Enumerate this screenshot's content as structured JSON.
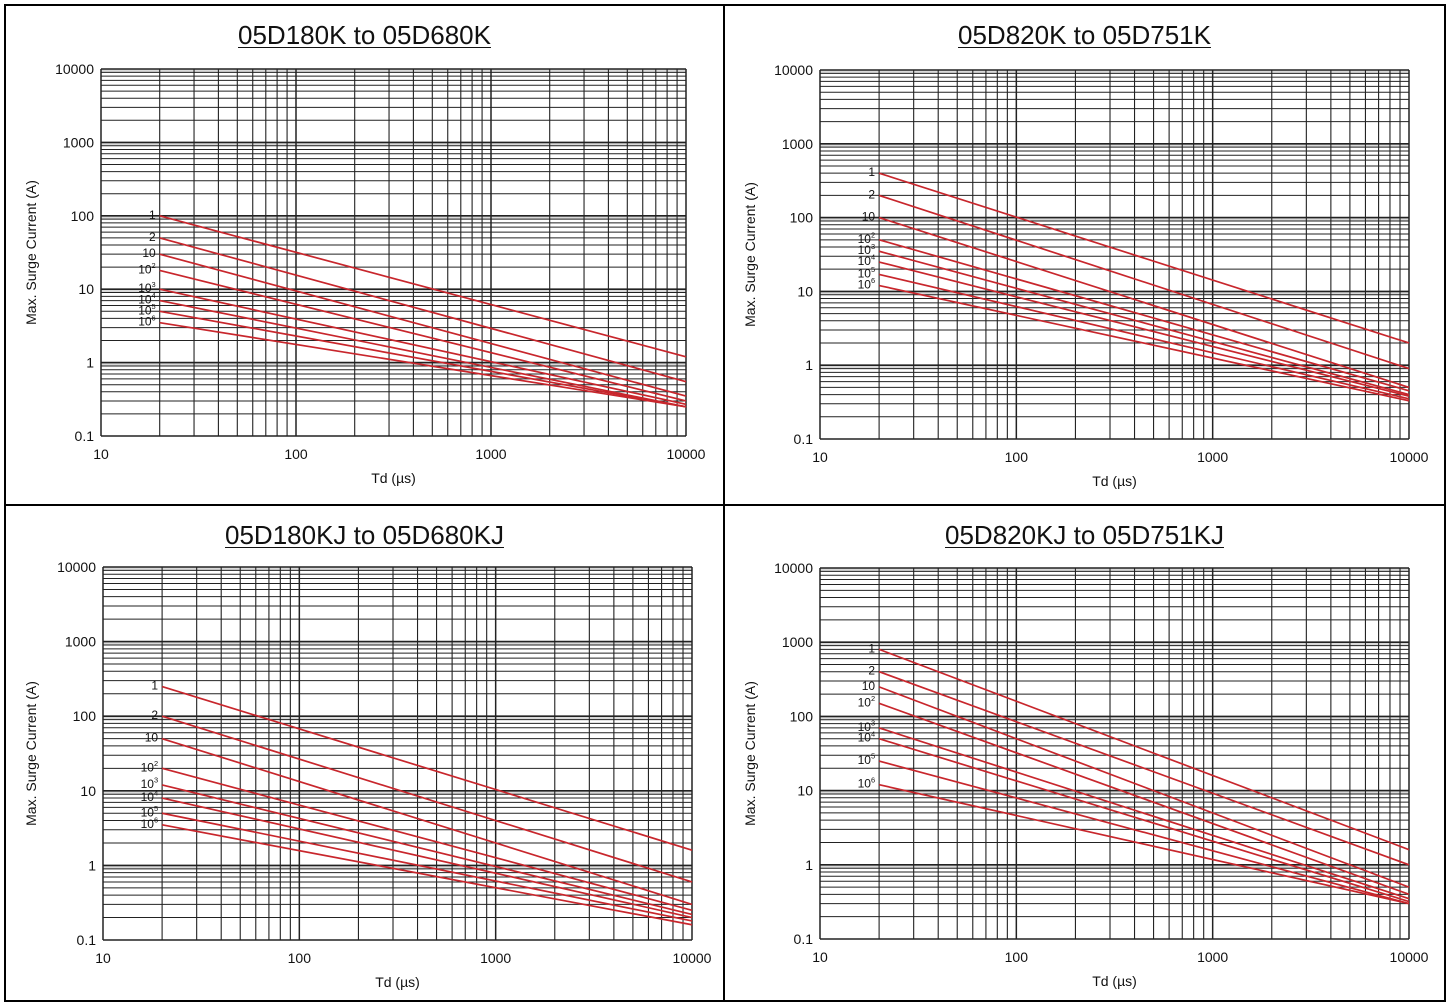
{
  "chart_data": [
    {
      "type": "line",
      "title": "05D180K to 05D680K",
      "xlabel": "Td (µs)",
      "ylabel": "Max. Surge Current (A)",
      "x_scale": "log",
      "y_scale": "log",
      "xlim": [
        10,
        10000
      ],
      "ylim": [
        0.1,
        10000
      ],
      "x_ticks": [
        "10",
        "100",
        "1000",
        "10000"
      ],
      "y_ticks": [
        "0.1",
        "1",
        "10",
        "100",
        "1000",
        "10000"
      ],
      "grid": true,
      "line_color": "#c8262c",
      "series": [
        {
          "name": "1",
          "x": [
            20,
            10000
          ],
          "y": [
            100,
            1.2
          ]
        },
        {
          "name": "2",
          "x": [
            20,
            10000
          ],
          "y": [
            50,
            0.55
          ]
        },
        {
          "name": "10",
          "x": [
            20,
            10000
          ],
          "y": [
            30,
            0.35
          ]
        },
        {
          "name": "10^2",
          "x": [
            20,
            10000
          ],
          "y": [
            18,
            0.3
          ]
        },
        {
          "name": "10^3",
          "x": [
            20,
            10000
          ],
          "y": [
            10,
            0.27
          ]
        },
        {
          "name": "10^4",
          "x": [
            20,
            10000
          ],
          "y": [
            7,
            0.25
          ]
        },
        {
          "name": "10^5",
          "x": [
            20,
            10000
          ],
          "y": [
            5,
            0.25
          ]
        },
        {
          "name": "10^6",
          "x": [
            20,
            10000
          ],
          "y": [
            3.5,
            0.25
          ]
        }
      ]
    },
    {
      "type": "line",
      "title": "05D820K to 05D751K",
      "xlabel": "Td (µs)",
      "ylabel": "Max. Surge Current (A)",
      "x_scale": "log",
      "y_scale": "log",
      "xlim": [
        10,
        10000
      ],
      "ylim": [
        0.1,
        10000
      ],
      "x_ticks": [
        "10",
        "100",
        "1000",
        "10000"
      ],
      "y_ticks": [
        "0.1",
        "1",
        "10",
        "100",
        "1000",
        "10000"
      ],
      "grid": true,
      "line_color": "#c8262c",
      "series": [
        {
          "name": "1",
          "x": [
            20,
            10000
          ],
          "y": [
            400,
            2.0
          ]
        },
        {
          "name": "2",
          "x": [
            20,
            10000
          ],
          "y": [
            200,
            0.9
          ]
        },
        {
          "name": "10",
          "x": [
            20,
            10000
          ],
          "y": [
            100,
            0.5
          ]
        },
        {
          "name": "10^2",
          "x": [
            20,
            10000
          ],
          "y": [
            50,
            0.45
          ]
        },
        {
          "name": "10^3",
          "x": [
            20,
            10000
          ],
          "y": [
            35,
            0.4
          ]
        },
        {
          "name": "10^4",
          "x": [
            20,
            10000
          ],
          "y": [
            25,
            0.38
          ]
        },
        {
          "name": "10^5",
          "x": [
            20,
            10000
          ],
          "y": [
            17,
            0.35
          ]
        },
        {
          "name": "10^6",
          "x": [
            20,
            10000
          ],
          "y": [
            12,
            0.33
          ]
        }
      ]
    },
    {
      "type": "line",
      "title": "05D180KJ to 05D680KJ",
      "xlabel": "Td (µs)",
      "ylabel": "Max. Surge Current (A)",
      "x_scale": "log",
      "y_scale": "log",
      "xlim": [
        10,
        10000
      ],
      "ylim": [
        0.1,
        10000
      ],
      "x_ticks": [
        "10",
        "100",
        "1000",
        "10000"
      ],
      "y_ticks": [
        "0.1",
        "1",
        "10",
        "100",
        "1000",
        "10000"
      ],
      "grid": true,
      "line_color": "#c8262c",
      "series": [
        {
          "name": "1",
          "x": [
            20,
            10000
          ],
          "y": [
            250,
            1.6
          ]
        },
        {
          "name": "2",
          "x": [
            20,
            10000
          ],
          "y": [
            100,
            0.6
          ]
        },
        {
          "name": "10",
          "x": [
            20,
            10000
          ],
          "y": [
            50,
            0.3
          ]
        },
        {
          "name": "10^2",
          "x": [
            20,
            10000
          ],
          "y": [
            20,
            0.25
          ]
        },
        {
          "name": "10^3",
          "x": [
            20,
            10000
          ],
          "y": [
            12,
            0.22
          ]
        },
        {
          "name": "10^4",
          "x": [
            20,
            10000
          ],
          "y": [
            8,
            0.2
          ]
        },
        {
          "name": "10^5",
          "x": [
            20,
            10000
          ],
          "y": [
            5,
            0.18
          ]
        },
        {
          "name": "10^6",
          "x": [
            20,
            10000
          ],
          "y": [
            3.5,
            0.16
          ]
        }
      ]
    },
    {
      "type": "line",
      "title": "05D820KJ to 05D751KJ",
      "xlabel": "Td (µs)",
      "ylabel": "Max. Surge Current (A)",
      "x_scale": "log",
      "y_scale": "log",
      "xlim": [
        10,
        10000
      ],
      "ylim": [
        0.1,
        10000
      ],
      "x_ticks": [
        "10",
        "100",
        "1000",
        "10000"
      ],
      "y_ticks": [
        "0.1",
        "1",
        "10",
        "100",
        "1000",
        "10000"
      ],
      "grid": true,
      "line_color": "#c8262c",
      "series": [
        {
          "name": "1",
          "x": [
            20,
            10000
          ],
          "y": [
            800,
            1.6
          ]
        },
        {
          "name": "2",
          "x": [
            20,
            10000
          ],
          "y": [
            400,
            1.0
          ]
        },
        {
          "name": "10",
          "x": [
            20,
            10000
          ],
          "y": [
            250,
            0.5
          ]
        },
        {
          "name": "10^2",
          "x": [
            20,
            10000
          ],
          "y": [
            150,
            0.4
          ]
        },
        {
          "name": "10^3",
          "x": [
            20,
            10000
          ],
          "y": [
            70,
            0.35
          ]
        },
        {
          "name": "10^4",
          "x": [
            20,
            10000
          ],
          "y": [
            50,
            0.32
          ]
        },
        {
          "name": "10^5",
          "x": [
            20,
            10000
          ],
          "y": [
            25,
            0.3
          ]
        },
        {
          "name": "10^6",
          "x": [
            20,
            10000
          ],
          "y": [
            12,
            0.3
          ]
        }
      ]
    }
  ]
}
